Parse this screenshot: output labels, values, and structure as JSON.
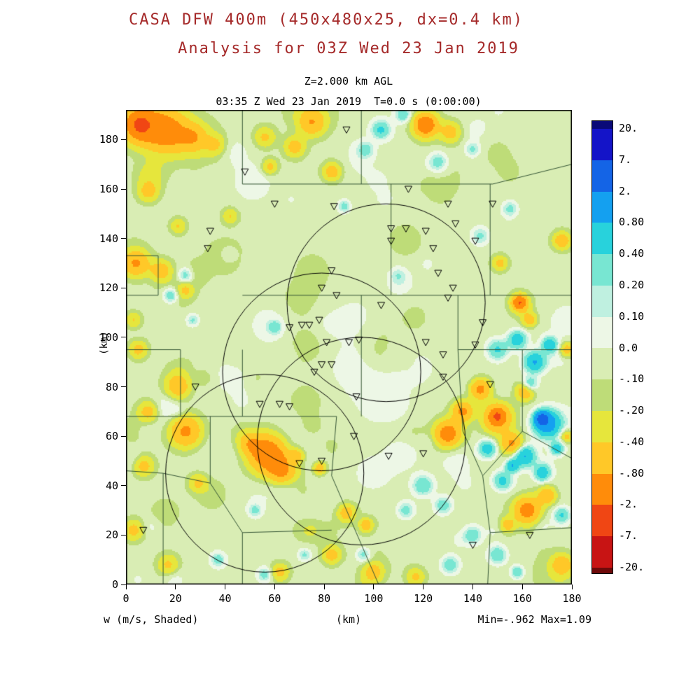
{
  "page": {
    "background": "#FFFFFF"
  },
  "chart_data": {
    "type": "heatmap",
    "title": "CASA DFW 400m (450x480x25, dx=0.4 km)",
    "subtitle": "Analysis for 03Z Wed 23 Jan 2019",
    "title_color": "#A52A2A",
    "level_label": "Z=2.000 km AGL",
    "time_label": "03:35 Z Wed 23 Jan 2019  T=0.0 s (0:00:00)",
    "xlabel": "(km)",
    "ylabel": "(km)",
    "variable_label": "w (m/s, Shaded)",
    "minmax_label": "Min=-.962 Max=1.09",
    "min": -0.962,
    "max": 1.09,
    "x_range": [
      0,
      180
    ],
    "y_range": [
      0,
      192
    ],
    "x_ticks": [
      0,
      20,
      40,
      60,
      80,
      100,
      120,
      140,
      160,
      180
    ],
    "y_ticks": [
      0,
      20,
      40,
      60,
      80,
      100,
      120,
      140,
      160,
      180
    ],
    "grid": false,
    "legend_position": "right",
    "colorbar": {
      "labels": [
        "20.",
        "7.",
        "2.",
        "0.80",
        "0.40",
        "0.20",
        "0.10",
        "0.0",
        "-.10",
        "-.20",
        "-.40",
        "-.80",
        "-2.",
        "-7.",
        "-20."
      ],
      "levels_ascending": [
        -20,
        -7,
        -2,
        -0.8,
        -0.4,
        -0.2,
        -0.1,
        0,
        0.1,
        0.2,
        0.4,
        0.8,
        2,
        7,
        20
      ],
      "colors_ascending": [
        "#6E0A0A",
        "#C81414",
        "#F04614",
        "#FF8C0A",
        "#FFC828",
        "#E6E63C",
        "#BEDC78",
        "#D9EDB4",
        "#EDF7E6",
        "#BFF0E0",
        "#78E6D2",
        "#28D2DC",
        "#14A0F0",
        "#1464E6",
        "#1414C8",
        "#0A0A78"
      ]
    },
    "county_line_color": "#355535",
    "field": {
      "base": -0.06,
      "noise": {
        "seed": 7,
        "count": 160,
        "amp": 0.13,
        "rmin": 3,
        "rmax": 9
      },
      "blobs": [
        [
          6,
          186,
          7,
          -1.3
        ],
        [
          6,
          186,
          3,
          -1.6
        ],
        [
          16,
          184,
          8,
          -1.0
        ],
        [
          27,
          181,
          5,
          -0.55
        ],
        [
          36,
          178,
          4,
          -0.35
        ],
        [
          56,
          181,
          4,
          -0.4
        ],
        [
          75,
          187,
          5,
          -0.7
        ],
        [
          68,
          177,
          4,
          -0.5
        ],
        [
          58,
          169,
          3,
          -0.45
        ],
        [
          83,
          167,
          3.5,
          -0.55
        ],
        [
          121,
          186,
          5,
          -1.0
        ],
        [
          121,
          186,
          2.5,
          -0.8
        ],
        [
          131,
          183,
          4,
          -0.5
        ],
        [
          9,
          159,
          4,
          -0.45
        ],
        [
          4,
          130,
          5,
          -0.8
        ],
        [
          14,
          127,
          4,
          -0.55
        ],
        [
          24,
          119,
          3,
          -0.35
        ],
        [
          3,
          107,
          3,
          -0.35
        ],
        [
          5,
          95,
          3.5,
          -0.45
        ],
        [
          21,
          80,
          5,
          -0.65
        ],
        [
          9,
          70,
          4,
          -0.5
        ],
        [
          24,
          62,
          6,
          -0.85
        ],
        [
          7,
          48,
          4,
          -0.5
        ],
        [
          29,
          41,
          3.5,
          -0.4
        ],
        [
          3,
          22,
          4,
          -0.45
        ],
        [
          17,
          8,
          4,
          -0.4
        ],
        [
          42,
          149,
          3,
          -0.35
        ],
        [
          21,
          145,
          3,
          -0.35
        ],
        [
          57,
          53,
          7,
          -1.25
        ],
        [
          60,
          50,
          3,
          -0.7
        ],
        [
          63,
          46,
          5,
          -0.85
        ],
        [
          50,
          57,
          4,
          -0.5
        ],
        [
          69,
          52,
          3,
          -0.5
        ],
        [
          78,
          47,
          2.5,
          -0.55
        ],
        [
          89,
          29,
          3.5,
          -0.55
        ],
        [
          97,
          24,
          2.5,
          -0.6
        ],
        [
          83,
          12,
          3.5,
          -0.5
        ],
        [
          62,
          5,
          3.5,
          -0.45
        ],
        [
          100,
          5,
          4,
          -0.5
        ],
        [
          117,
          3,
          3.5,
          -0.4
        ],
        [
          130,
          61,
          5,
          -1.1
        ],
        [
          136,
          70,
          4,
          -0.85
        ],
        [
          143,
          79,
          4,
          -0.95
        ],
        [
          150,
          68,
          5,
          -1.15
        ],
        [
          150,
          68,
          2,
          -1.5
        ],
        [
          156,
          57,
          4,
          -0.8
        ],
        [
          161,
          78,
          3.5,
          -0.65
        ],
        [
          159,
          114,
          3.5,
          -0.8
        ],
        [
          159,
          114,
          2,
          -1.2
        ],
        [
          163,
          107,
          3,
          -0.55
        ],
        [
          151,
          130,
          3,
          -0.45
        ],
        [
          176,
          139,
          3.5,
          -0.6
        ],
        [
          178,
          95,
          3,
          -0.55
        ],
        [
          162,
          30,
          5,
          -1.0
        ],
        [
          170,
          36,
          3.5,
          -0.65
        ],
        [
          154,
          24,
          3,
          -0.5
        ],
        [
          176,
          8,
          4,
          -0.6
        ],
        [
          178,
          60,
          2.5,
          -0.5
        ],
        [
          103,
          184,
          3.5,
          0.5
        ],
        [
          97,
          176,
          3,
          0.3
        ],
        [
          112,
          190,
          3,
          0.4
        ],
        [
          126,
          171,
          3.5,
          0.35
        ],
        [
          140,
          176,
          3,
          0.3
        ],
        [
          88,
          153,
          2.5,
          0.35
        ],
        [
          18,
          117,
          3,
          0.45
        ],
        [
          24,
          125,
          3,
          0.4
        ],
        [
          27,
          107,
          2.5,
          0.3
        ],
        [
          150,
          95,
          4,
          0.5
        ],
        [
          158,
          99,
          3.5,
          0.7
        ],
        [
          165,
          90,
          4,
          0.9
        ],
        [
          171,
          97,
          3,
          0.7
        ],
        [
          163,
          81,
          3,
          0.5
        ],
        [
          170,
          65,
          5,
          1.3
        ],
        [
          168,
          67,
          2.5,
          2.6
        ],
        [
          161,
          52,
          4,
          0.9
        ],
        [
          168,
          45,
          3,
          0.65
        ],
        [
          152,
          42,
          3.5,
          0.55
        ],
        [
          146,
          55,
          3.5,
          0.7
        ],
        [
          156,
          48,
          2.5,
          0.8
        ],
        [
          174,
          55,
          2.5,
          0.7
        ],
        [
          176,
          28,
          3,
          0.45
        ],
        [
          120,
          40,
          4,
          0.45
        ],
        [
          128,
          32,
          3.5,
          0.4
        ],
        [
          113,
          30,
          3.5,
          0.35
        ],
        [
          140,
          20,
          3.5,
          0.4
        ],
        [
          150,
          12,
          3.5,
          0.45
        ],
        [
          131,
          8,
          3.5,
          0.4
        ],
        [
          158,
          5,
          2.5,
          0.45
        ],
        [
          96,
          12,
          3,
          0.35
        ],
        [
          72,
          12,
          2.5,
          0.3
        ],
        [
          52,
          30,
          2.5,
          0.3
        ],
        [
          56,
          4,
          3,
          0.35
        ],
        [
          37,
          10,
          2.5,
          0.3
        ],
        [
          95,
          88,
          12,
          0.13
        ],
        [
          105,
          72,
          11,
          0.12
        ],
        [
          92,
          108,
          8,
          0.1
        ],
        [
          112,
          55,
          9,
          0.1
        ],
        [
          100,
          45,
          8,
          0.12
        ],
        [
          118,
          88,
          8,
          0.1
        ],
        [
          60,
          104,
          2.5,
          0.35
        ],
        [
          110,
          125,
          3,
          0.18
        ],
        [
          143,
          141,
          3.5,
          0.3
        ],
        [
          155,
          152,
          3,
          0.3
        ]
      ]
    },
    "radar_circles": [
      [
        105,
        114,
        40
      ],
      [
        79,
        86,
        40
      ],
      [
        56,
        45,
        40
      ],
      [
        95,
        58,
        42
      ]
    ],
    "stations": [
      [
        89,
        184
      ],
      [
        48,
        167
      ],
      [
        60,
        154
      ],
      [
        84,
        153
      ],
      [
        114,
        160
      ],
      [
        130,
        154
      ],
      [
        148,
        154
      ],
      [
        34,
        143
      ],
      [
        107,
        144
      ],
      [
        113,
        144
      ],
      [
        121,
        143
      ],
      [
        133,
        146
      ],
      [
        33,
        136
      ],
      [
        107,
        139
      ],
      [
        124,
        136
      ],
      [
        141,
        139
      ],
      [
        83,
        127
      ],
      [
        126,
        126
      ],
      [
        79,
        120
      ],
      [
        85,
        117
      ],
      [
        103,
        113
      ],
      [
        130,
        116
      ],
      [
        132,
        120
      ],
      [
        66,
        104
      ],
      [
        71,
        105
      ],
      [
        74,
        105
      ],
      [
        78,
        107
      ],
      [
        81,
        98
      ],
      [
        90,
        98
      ],
      [
        94,
        99
      ],
      [
        121,
        98
      ],
      [
        128,
        93
      ],
      [
        141,
        97
      ],
      [
        144,
        106
      ],
      [
        79,
        89
      ],
      [
        83,
        89
      ],
      [
        76,
        86
      ],
      [
        128,
        84
      ],
      [
        147,
        81
      ],
      [
        28,
        80
      ],
      [
        93,
        76
      ],
      [
        54,
        73
      ],
      [
        62,
        73
      ],
      [
        66,
        72
      ],
      [
        92,
        60
      ],
      [
        70,
        49
      ],
      [
        79,
        50
      ],
      [
        106,
        52
      ],
      [
        120,
        53
      ],
      [
        7,
        22
      ],
      [
        140,
        16
      ],
      [
        163,
        20
      ]
    ],
    "county_lines": [
      [
        [
          47,
          192
        ],
        [
          47,
          162
        ]
      ],
      [
        [
          95,
          192
        ],
        [
          95,
          162
        ]
      ],
      [
        [
          47,
          162
        ],
        [
          148,
          162
        ]
      ],
      [
        [
          148,
          162
        ],
        [
          180,
          170
        ]
      ],
      [
        [
          107,
          162
        ],
        [
          107,
          117
        ]
      ],
      [
        [
          147,
          162
        ],
        [
          147,
          117
        ]
      ],
      [
        [
          47,
          117
        ],
        [
          134,
          117
        ]
      ],
      [
        [
          134,
          117
        ],
        [
          180,
          117
        ]
      ],
      [
        [
          134,
          117
        ],
        [
          134,
          95
        ],
        [
          180,
          95
        ]
      ],
      [
        [
          160,
          95
        ],
        [
          160,
          62
        ],
        [
          180,
          51
        ]
      ],
      [
        [
          134,
          95
        ],
        [
          136,
          62
        ],
        [
          144,
          44
        ]
      ],
      [
        [
          144,
          44
        ],
        [
          160,
          62
        ]
      ],
      [
        [
          144,
          44
        ],
        [
          147,
          21
        ],
        [
          146,
          0
        ]
      ],
      [
        [
          147,
          21
        ],
        [
          180,
          23
        ]
      ],
      [
        [
          85,
          68
        ],
        [
          83,
          44
        ],
        [
          102,
          0
        ]
      ],
      [
        [
          47,
          95
        ],
        [
          47,
          68
        ],
        [
          85,
          68
        ]
      ],
      [
        [
          0,
          68
        ],
        [
          47,
          68
        ]
      ],
      [
        [
          34,
          68
        ],
        [
          34,
          41
        ],
        [
          15,
          45
        ],
        [
          15,
          0
        ]
      ],
      [
        [
          0,
          46
        ],
        [
          15,
          45
        ]
      ],
      [
        [
          34,
          41
        ],
        [
          47,
          21
        ],
        [
          47,
          0
        ]
      ],
      [
        [
          47,
          21
        ],
        [
          83,
          22
        ]
      ],
      [
        [
          0,
          133
        ],
        [
          13,
          133
        ],
        [
          13,
          117
        ],
        [
          0,
          117
        ]
      ],
      [
        [
          0,
          95
        ],
        [
          22,
          95
        ],
        [
          22,
          68
        ]
      ],
      [
        [
          95,
          117
        ],
        [
          95,
          68
        ]
      ]
    ]
  }
}
